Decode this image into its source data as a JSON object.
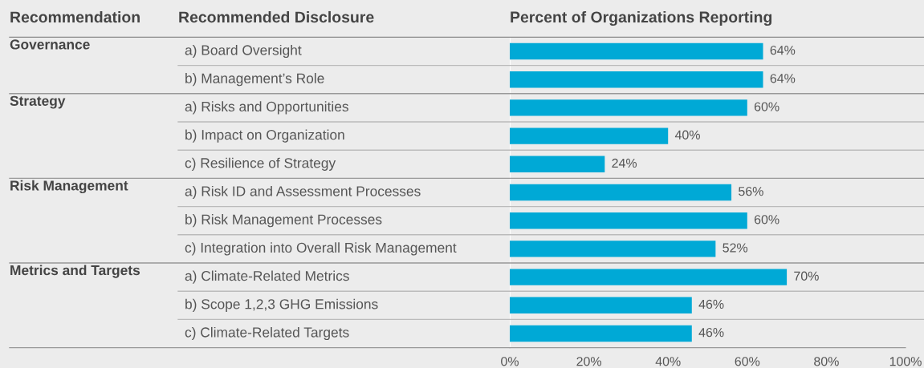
{
  "chart_data": {
    "type": "bar",
    "orientation": "horizontal",
    "title": "Percent of Organizations Reporting",
    "categories": [
      "a) Board Oversight",
      "b) Management’s Role",
      "a) Risks and Opportunities",
      "b) Impact on Organization",
      "c) Resilience of Strategy",
      "a) Risk ID and Assessment Processes",
      "b) Risk Management Processes",
      "c) Integration into Overall Risk Management",
      "a) Climate-Related Metrics",
      "b) Scope 1,2,3 GHG Emissions",
      "c) Climate-Related Targets"
    ],
    "values": [
      64,
      64,
      60,
      40,
      24,
      56,
      60,
      52,
      70,
      46,
      46
    ],
    "value_labels": [
      "64%",
      "64%",
      "60%",
      "40%",
      "24%",
      "56%",
      "60%",
      "52%",
      "70%",
      "46%",
      "46%"
    ],
    "color": "#00a9d6",
    "xlim": [
      0,
      100
    ],
    "xticks": [
      {
        "value": 0,
        "label": "0%"
      },
      {
        "value": 20,
        "label": "20%"
      },
      {
        "value": 40,
        "label": "40%"
      },
      {
        "value": 60,
        "label": "60%"
      },
      {
        "value": 80,
        "label": "80%"
      },
      {
        "value": 100,
        "label": "100%"
      }
    ],
    "grid": false,
    "legend": false,
    "annotations": [
      "Recommendation",
      "Recommended Disclosure",
      "Governance",
      "Strategy",
      "Risk Management",
      "Metrics and Targets"
    ]
  }
}
